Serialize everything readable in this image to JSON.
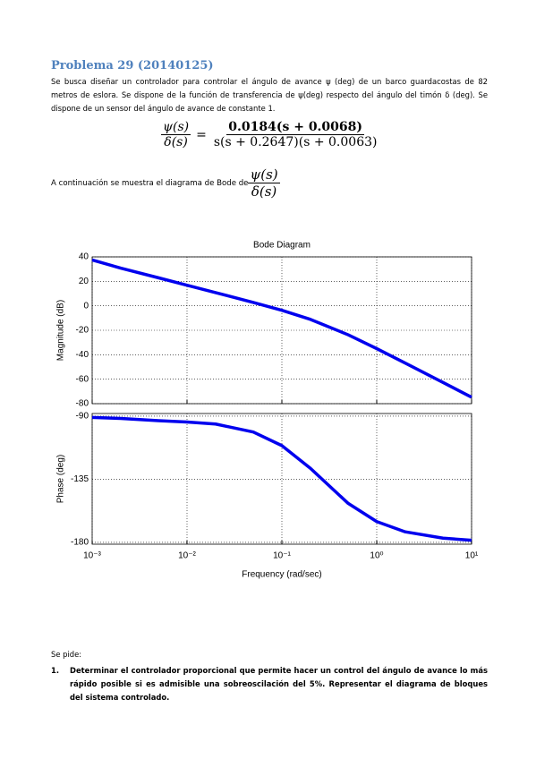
{
  "header": {
    "title": "Problema 29 (20140125)"
  },
  "intro": "Se busca diseñar un controlador para controlar el ángulo de avance ψ (deg) de un barco guardacostas de 82 metros de eslora. Se dispone de la función de transferencia de ψ(deg) respecto del ángulo del  timón δ (deg). Se dispone de un sensor del ángulo de avance de constante 1.",
  "equation": {
    "lhs_num": "ψ(s)",
    "lhs_den": "δ(s)",
    "equals": "=",
    "rhs_num": "0.0184(s + 0.0068)",
    "rhs_den": "s(s + 0.2647)(s + 0.0063)"
  },
  "bode_intro": {
    "text": "A continuación se muestra el diagrama de Bode de",
    "num": "ψ(s)",
    "den": "δ(s)"
  },
  "chart_data": {
    "type": "bode",
    "title": "Bode Diagram",
    "xlabel": "Frequency  (rad/sec)",
    "xscale": "log",
    "grid": true,
    "x": [
      0.001,
      0.002,
      0.005,
      0.01,
      0.02,
      0.05,
      0.1,
      0.2,
      0.5,
      1,
      2,
      5,
      10
    ],
    "xlim": [
      0.001,
      10
    ],
    "xticks": [
      {
        "value": 0.001,
        "label": "10⁻³"
      },
      {
        "value": 0.01,
        "label": "10⁻²"
      },
      {
        "value": 0.1,
        "label": "10⁻¹"
      },
      {
        "value": 1,
        "label": "10⁰"
      },
      {
        "value": 10,
        "label": "10¹"
      }
    ],
    "panels": [
      {
        "ylabel": "Magnitude (dB)",
        "color": "#0000ee",
        "ylim": [
          -80,
          40
        ],
        "yticks": [
          -80,
          -60,
          -40,
          -20,
          0,
          20,
          40
        ],
        "values": [
          37.5,
          30.8,
          22.9,
          16.8,
          10.8,
          2.7,
          -3.7,
          -11.1,
          -23.7,
          -35.0,
          -46.8,
          -62.7,
          -74.7
        ]
      },
      {
        "ylabel": "Phase (deg)",
        "color": "#0000ee",
        "ylim": [
          -181.3,
          -88.1
        ],
        "yticks": [
          -180,
          -135,
          -90
        ],
        "values": [
          -90.9,
          -91.6,
          -93.2,
          -94.2,
          -95.6,
          -101.3,
          -111.0,
          -127.2,
          -152.2,
          -165.2,
          -172.5,
          -177.0,
          -178.5
        ]
      }
    ]
  },
  "questions": {
    "intro": "Se pide:",
    "items": [
      {
        "number": "1.",
        "text": "Determinar el controlador proporcional que permite hacer un control del ángulo de avance lo más rápido posible si es admisible una sobreoscilación del 5%. Representar el diagrama de bloques del sistema controlado."
      }
    ]
  }
}
